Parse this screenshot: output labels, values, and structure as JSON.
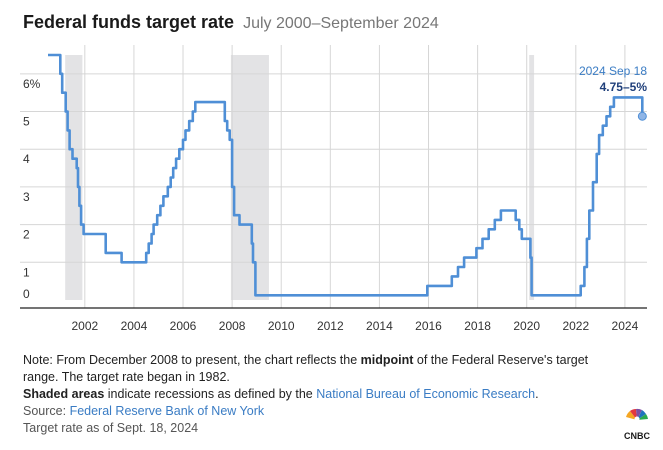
{
  "header": {
    "title": "Federal funds target rate",
    "subtitle": "July 2000–September 2024"
  },
  "colors": {
    "line": "#4f8fd6",
    "recession": "#e3e3e5",
    "grid": "#d6d6d6",
    "annotation": "#3a7cc4",
    "annotation_value": "#1f3f7a"
  },
  "chart_data": {
    "type": "line",
    "title": "Federal funds target rate",
    "subtitle": "July 2000–September 2024",
    "x_ticks": [
      "2002",
      "2004",
      "2006",
      "2008",
      "2010",
      "2012",
      "2014",
      "2016",
      "2018",
      "2020",
      "2022",
      "2024"
    ],
    "y_ticks": [
      "6%",
      "5",
      "4",
      "3",
      "2",
      "1",
      "0"
    ],
    "xlim": [
      2000.5,
      2024.9
    ],
    "ylim": [
      0,
      6.5
    ],
    "grid": true,
    "recessions": [
      {
        "start": 2001.2,
        "end": 2001.9
      },
      {
        "start": 2007.95,
        "end": 2009.5
      },
      {
        "start": 2020.1,
        "end": 2020.3
      }
    ],
    "series": [
      {
        "step": true,
        "points": [
          [
            2000.5,
            6.5
          ],
          [
            2001.0,
            6.0
          ],
          [
            2001.08,
            5.5
          ],
          [
            2001.22,
            5.0
          ],
          [
            2001.3,
            4.5
          ],
          [
            2001.38,
            4.0
          ],
          [
            2001.5,
            3.75
          ],
          [
            2001.67,
            3.5
          ],
          [
            2001.72,
            3.0
          ],
          [
            2001.78,
            2.5
          ],
          [
            2001.85,
            2.0
          ],
          [
            2001.95,
            1.75
          ],
          [
            2002.85,
            1.25
          ],
          [
            2003.5,
            1.0
          ],
          [
            2004.5,
            1.25
          ],
          [
            2004.6,
            1.5
          ],
          [
            2004.72,
            1.75
          ],
          [
            2004.8,
            2.0
          ],
          [
            2004.95,
            2.25
          ],
          [
            2005.08,
            2.5
          ],
          [
            2005.2,
            2.75
          ],
          [
            2005.38,
            3.0
          ],
          [
            2005.5,
            3.25
          ],
          [
            2005.6,
            3.5
          ],
          [
            2005.72,
            3.75
          ],
          [
            2005.85,
            4.0
          ],
          [
            2006.0,
            4.25
          ],
          [
            2006.1,
            4.5
          ],
          [
            2006.25,
            4.75
          ],
          [
            2006.4,
            5.0
          ],
          [
            2006.5,
            5.25
          ],
          [
            2007.7,
            4.75
          ],
          [
            2007.8,
            4.5
          ],
          [
            2007.9,
            4.25
          ],
          [
            2008.0,
            3.0
          ],
          [
            2008.08,
            2.25
          ],
          [
            2008.3,
            2.0
          ],
          [
            2008.8,
            1.5
          ],
          [
            2008.85,
            1.0
          ],
          [
            2008.95,
            0.125
          ],
          [
            2015.95,
            0.375
          ],
          [
            2016.95,
            0.625
          ],
          [
            2017.2,
            0.875
          ],
          [
            2017.45,
            1.125
          ],
          [
            2017.95,
            1.375
          ],
          [
            2018.2,
            1.625
          ],
          [
            2018.45,
            1.875
          ],
          [
            2018.7,
            2.125
          ],
          [
            2018.95,
            2.375
          ],
          [
            2019.55,
            2.125
          ],
          [
            2019.7,
            1.875
          ],
          [
            2019.8,
            1.625
          ],
          [
            2020.15,
            1.125
          ],
          [
            2020.2,
            0.125
          ],
          [
            2022.2,
            0.375
          ],
          [
            2022.35,
            0.875
          ],
          [
            2022.45,
            1.625
          ],
          [
            2022.55,
            2.375
          ],
          [
            2022.7,
            3.125
          ],
          [
            2022.85,
            3.875
          ],
          [
            2022.95,
            4.375
          ],
          [
            2023.1,
            4.625
          ],
          [
            2023.25,
            4.875
          ],
          [
            2023.4,
            5.125
          ],
          [
            2023.55,
            5.375
          ],
          [
            2024.71,
            4.875
          ]
        ]
      }
    ],
    "annotation": {
      "label": "2024 Sep 18",
      "value": "4.75–5%",
      "x": 2024.71,
      "y": 4.875
    }
  },
  "notes": {
    "note_prefix": "Note: From December 2008 to present, the chart reflects the ",
    "note_bold": "midpoint",
    "note_suffix": " of the Federal Reserve's target",
    "note_line2": "range. The target rate began in 1982.",
    "shaded_bold": "Shaded areas",
    "shaded_mid": " indicate recessions as defined by the ",
    "shaded_link": "National Bureau of Economic Research",
    "shaded_end": ".",
    "source_prefix": "Source: ",
    "source_link": "Federal Reserve Bank of New York",
    "asof": "Target rate as of Sept. 18, 2024"
  },
  "logo": {
    "text": "CNBC"
  }
}
